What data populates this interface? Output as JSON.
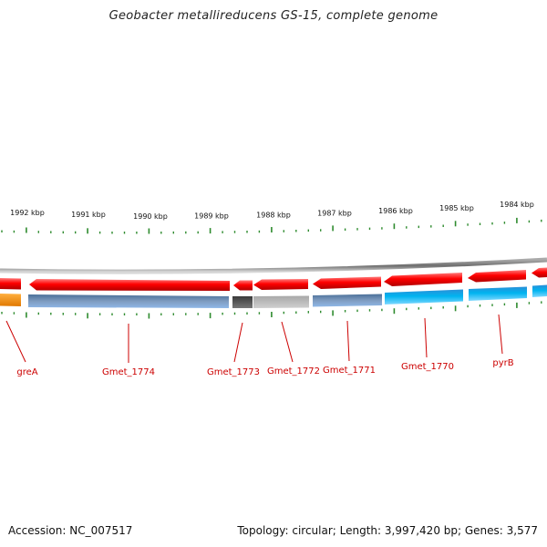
{
  "title": "Geobacter metallireducens GS-15, complete genome",
  "footer": {
    "accession": "Accession: NC_007517",
    "summary": "Topology: circular; Length: 3,997,420 bp; Genes: 3,577"
  },
  "colors": {
    "forward_gene": "#ff0000",
    "reverse_gene": "#00aeef",
    "backbone": "#8c8c8c",
    "tick": "#2e8b2e",
    "label": "#cc0000",
    "hypothetical_dark": "#555555",
    "hypothetical_light": "#b4b4b4",
    "steel": "#5a7fa8",
    "orange": "#ff9900"
  },
  "kbp_labels": [
    "1992 kbp",
    "1991 kbp",
    "1990 kbp",
    "1989 kbp",
    "1988 kbp",
    "1987 kbp",
    "1986 kbp",
    "1985 kbp",
    "1984 kbp"
  ],
  "gene_labels": [
    "greA",
    "Gmet_1774",
    "Gmet_1773",
    "Gmet_1772",
    "Gmet_1771",
    "Gmet_1770",
    "pyrB"
  ]
}
